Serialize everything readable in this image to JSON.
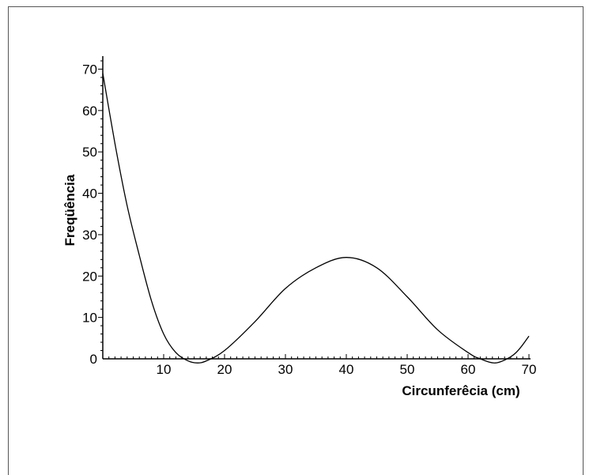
{
  "chart_data": {
    "type": "line",
    "title": "",
    "xlabel": "Circunferêcia (cm)",
    "ylabel": "Freqüência",
    "xlim": [
      0,
      70
    ],
    "ylim": [
      0,
      72
    ],
    "xticks": [
      10,
      20,
      30,
      40,
      50,
      60,
      70
    ],
    "yticks": [
      0,
      10,
      20,
      30,
      40,
      50,
      60,
      70
    ],
    "grid": false,
    "series": [
      {
        "name": "",
        "color": "#000000",
        "x": [
          0,
          2,
          4,
          6,
          8,
          10,
          12,
          14,
          15.5,
          17,
          20,
          25,
          30,
          35,
          40,
          45,
          50,
          55,
          60,
          62,
          64.5,
          67,
          68.5,
          70
        ],
        "y": [
          69,
          52,
          37,
          25,
          14,
          6,
          1.5,
          -0.5,
          -1,
          -0.5,
          2,
          9,
          17,
          22,
          24.5,
          22,
          15,
          7,
          1.5,
          0,
          -1,
          0.5,
          2.5,
          5.5
        ]
      }
    ]
  }
}
